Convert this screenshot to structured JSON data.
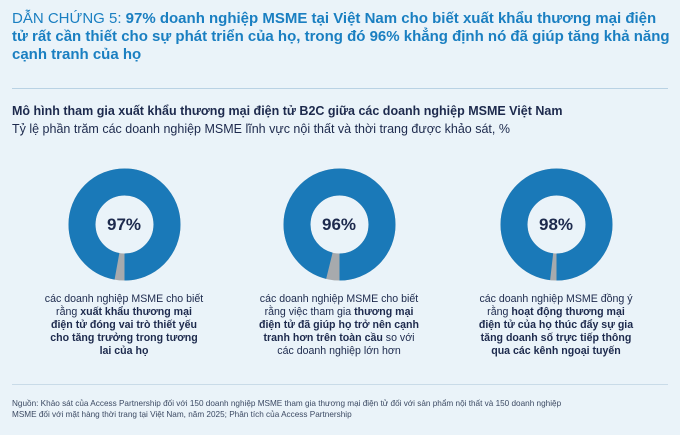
{
  "headline": {
    "prefix": "DẪN CHỨNG 5: ",
    "text": "97% doanh nghiệp MSME tại Việt Nam cho biết xuất khẩu thương mại điện tử rất cần thiết cho sự phát triển của họ, trong đó 96% khẳng định nó đã giúp tăng khả năng cạnh tranh của họ"
  },
  "colors": {
    "accent": "#1a7fc1",
    "donut_main": "#1a79b8",
    "donut_rest": "#a7aaad",
    "background": "#eaf3f9",
    "text": "#1d2a4d"
  },
  "chart_data": {
    "type": "pie",
    "variant": "donut",
    "title": "Mô hình tham gia xuất khẩu thương mại điện tử B2C giữa các doanh nghiệp MSME Việt Nam",
    "subtitle": "Tỷ lệ phần trăm các doanh nghiệp MSME lĩnh vực nội thất và thời trang được khảo sát, %",
    "items": [
      {
        "value": 97,
        "label": "97%",
        "caption": [
          {
            "text": "các doanh nghiệp MSME cho biết rằng ",
            "bold": false
          },
          {
            "text": "xuất khẩu thương mại điện tử đóng vai trò thiết yếu cho tăng trưởng trong tương lai của họ",
            "bold": true
          }
        ]
      },
      {
        "value": 96,
        "label": "96%",
        "caption": [
          {
            "text": "các doanh nghiệp MSME cho biết rằng việc tham gia ",
            "bold": false
          },
          {
            "text": "thương mại điện tử đã giúp họ trở nên cạnh tranh hơn trên toàn cầu",
            "bold": true
          },
          {
            "text": " so với các doanh nghiệp lớn hơn",
            "bold": false
          }
        ]
      },
      {
        "value": 98,
        "label": "98%",
        "caption": [
          {
            "text": "các doanh nghiệp MSME đồng ý rằng ",
            "bold": false
          },
          {
            "text": "hoạt động thương mại điện tử của họ thúc đẩy sự gia tăng doanh số trực tiếp thông qua các kênh ngoại tuyến",
            "bold": true
          }
        ]
      }
    ]
  },
  "source": "Nguồn: Khảo sát của Access Partnership đối với 150 doanh nghiệp MSME tham gia thương mại điện tử đối với sản phẩm nội thất và 150 doanh nghiệp MSME đối với mặt hàng thời trang tại Việt Nam, năm 2025; Phân tích của Access Partnership"
}
